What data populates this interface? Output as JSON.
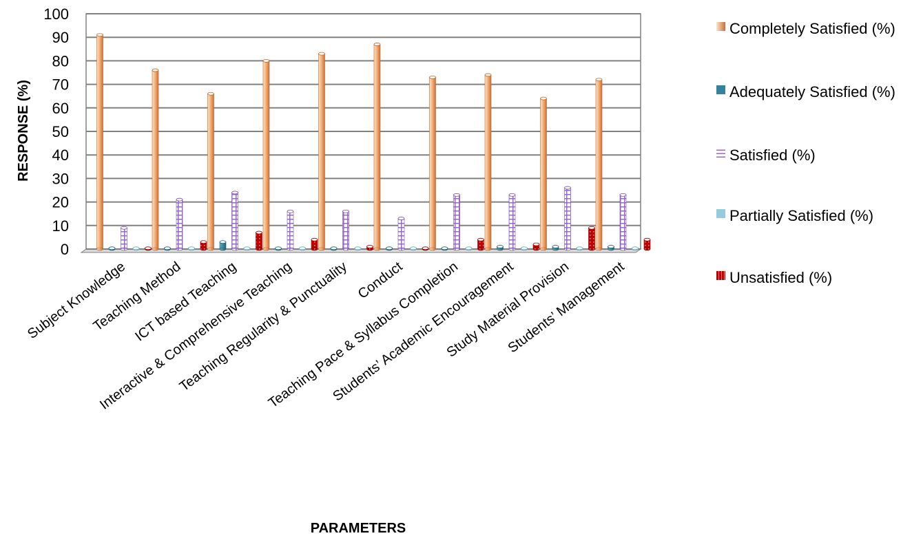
{
  "chart_data": {
    "type": "bar",
    "xlabel": "PARAMETERS",
    "ylabel": "RESPONSE (%)",
    "ylim": [
      0,
      100
    ],
    "ytick_step": 10,
    "grid": true,
    "legend_position": "right",
    "categories": [
      "Subject Knowledge",
      "Teaching Method",
      "ICT based Teaching",
      "Interactive & Comprehensive Teaching",
      "Teaching Regularity & Punctuality",
      "Conduct",
      "Teaching Pace & Syllabus Completion",
      "Students’ Academic Encouragement",
      "Study Material Provision",
      "Students’ Management"
    ],
    "series": [
      {
        "name": "Completely Satisfied (%)",
        "color": "#f4a460",
        "values": [
          91,
          76,
          66,
          80,
          83,
          87,
          73,
          74,
          64,
          72
        ]
      },
      {
        "name": "Adequately Satisfied (%)",
        "color": "#31849b",
        "values": [
          0,
          0,
          3,
          0,
          0,
          0,
          0,
          1,
          1,
          1
        ]
      },
      {
        "name": "Satisfied (%)",
        "color": "#9966cc",
        "values": [
          9,
          21,
          24,
          16,
          16,
          13,
          23,
          23,
          26,
          23
        ]
      },
      {
        "name": "Partially Satisfied (%)",
        "color": "#93cddd",
        "values": [
          0,
          0,
          0,
          0,
          0,
          0,
          0,
          0,
          0,
          0
        ]
      },
      {
        "name": "Unsatisfied (%)",
        "color": "#c00000",
        "values": [
          0,
          3,
          7,
          4,
          1,
          0,
          4,
          2,
          9,
          4
        ]
      }
    ]
  }
}
